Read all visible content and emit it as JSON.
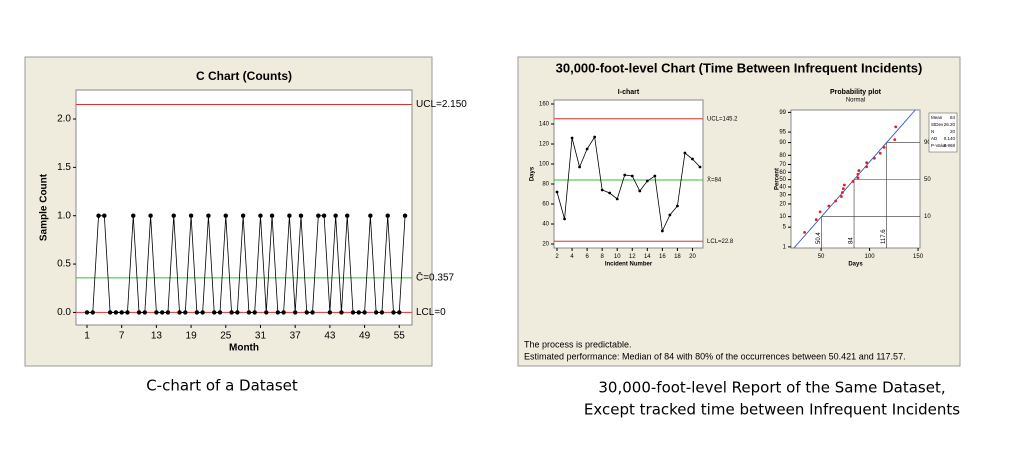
{
  "chart_data": [
    {
      "type": "line",
      "title": "C Chart (Counts)",
      "x_label": "Month",
      "y_label": "Sample Count",
      "x": [
        1,
        2,
        3,
        4,
        5,
        6,
        7,
        8,
        9,
        10,
        11,
        12,
        13,
        14,
        15,
        16,
        17,
        18,
        19,
        20,
        21,
        22,
        23,
        24,
        25,
        26,
        27,
        28,
        29,
        30,
        31,
        32,
        33,
        34,
        35,
        36,
        37,
        38,
        39,
        40,
        41,
        42,
        43,
        44,
        45,
        46,
        47,
        48,
        49,
        50,
        51,
        52,
        53,
        54,
        55,
        56
      ],
      "series": [
        {
          "name": "Sample Count",
          "color": "#000000",
          "values": [
            0,
            0,
            1,
            1,
            0,
            0,
            0,
            0,
            1,
            0,
            0,
            1,
            0,
            0,
            0,
            1,
            0,
            0,
            1,
            0,
            0,
            1,
            0,
            0,
            1,
            0,
            0,
            1,
            0,
            0,
            1,
            0,
            1,
            0,
            0,
            1,
            0,
            1,
            0,
            0,
            1,
            1,
            0,
            1,
            0,
            1,
            0,
            0,
            0,
            1,
            0,
            0,
            1,
            0,
            0,
            1
          ]
        }
      ],
      "xlim": [
        -0.9,
        57.2
      ],
      "xticks": [
        1,
        7,
        13,
        19,
        25,
        31,
        37,
        43,
        49,
        55
      ],
      "ylim": [
        -0.13,
        2.3
      ],
      "yticks": [
        {
          "value": 0,
          "label": "0.0"
        },
        {
          "value": 0.5,
          "label": "0.5"
        },
        {
          "value": 1,
          "label": "1.0"
        },
        {
          "value": 1.5,
          "label": "1.5"
        },
        {
          "value": 2,
          "label": "2.0"
        }
      ],
      "reference_lines": [
        {
          "value": 2.15,
          "label": "UCL=2.150",
          "color": "#e03030"
        },
        {
          "value": 0.357,
          "label": "C̄=0.357",
          "color": "#30c030"
        },
        {
          "value": 0,
          "label": "LCL=0",
          "color": "#e03030"
        }
      ]
    },
    {
      "type": "line",
      "title": "I-chart",
      "x_label": "Incident Number",
      "y_label": "Days",
      "x": [
        2,
        3,
        4,
        5,
        6,
        7,
        8,
        9,
        10,
        11,
        12,
        13,
        14,
        15,
        16,
        17,
        18,
        19,
        20,
        21
      ],
      "series": [
        {
          "name": "Days",
          "color": "#000000",
          "values": [
            72,
            45,
            126,
            97,
            115,
            127,
            74,
            71,
            65,
            89,
            88,
            73,
            83,
            88,
            33,
            49,
            58,
            111,
            105,
            97
          ]
        }
      ],
      "xlim": [
        1.6,
        21.4
      ],
      "xticks": [
        2,
        4,
        6,
        8,
        10,
        12,
        14,
        16,
        18,
        20
      ],
      "ylim": [
        16,
        164
      ],
      "yticks": [
        20,
        40,
        60,
        80,
        100,
        120,
        140,
        160
      ],
      "reference_lines": [
        {
          "value": 145.2,
          "label": "UCL=145.2",
          "color": "#e03030"
        },
        {
          "value": 84,
          "label": "X̄=84",
          "color": "#30c030"
        },
        {
          "value": 22.8,
          "label": "LCL=22.8",
          "color": "#e03030"
        }
      ]
    },
    {
      "type": "probability",
      "title": "Probability plot",
      "subtitle": "Normal",
      "x_label": "Days",
      "y_label": "Percent",
      "x": [
        33,
        45,
        49,
        58,
        65,
        71,
        72,
        73,
        74,
        83,
        88,
        88,
        89,
        97,
        97,
        105,
        111,
        115,
        126,
        127
      ],
      "values": [
        3.4,
        8.3,
        13.2,
        18.1,
        23.0,
        27.9,
        32.8,
        37.7,
        42.6,
        47.5,
        52.5,
        57.4,
        62.3,
        67.2,
        72.1,
        77.0,
        81.9,
        86.8,
        91.7,
        96.6
      ],
      "color": "#e02020",
      "fit_color": "#3050d0",
      "xlim": [
        19,
        152
      ],
      "xticks": [
        50,
        100,
        150
      ],
      "ylim": [
        0.9,
        99.2
      ],
      "yticks": [
        1,
        5,
        10,
        20,
        30,
        40,
        50,
        60,
        70,
        80,
        90,
        95,
        99
      ],
      "reference_lines": [
        {
          "percent": 90,
          "value": 117.6
        },
        {
          "percent": 50,
          "value": 84
        },
        {
          "percent": 10,
          "value": 50.4
        }
      ],
      "stats": [
        {
          "label": "Mean",
          "value": 84
        },
        {
          "label": "StDev",
          "value": 26.2,
          "value_label": "26.20"
        },
        {
          "label": "N",
          "value": 20
        },
        {
          "label": "AD",
          "value": 0.14,
          "value_label": "0.140"
        },
        {
          "label": "P-Value",
          "value": 0.968
        }
      ]
    }
  ],
  "report_title": "30,000-foot-level Chart (Time Between Infrequent Incidents)",
  "notes": [
    "The process is predictable.",
    "Estimated performance: Median of 84 with 80% of the occurrences between 50.421 and 117.57."
  ],
  "captions": [
    "C-chart of a Dataset",
    "30,000-foot-level Report of the Same Dataset,",
    "Except tracked time between Infrequent Incidents"
  ]
}
